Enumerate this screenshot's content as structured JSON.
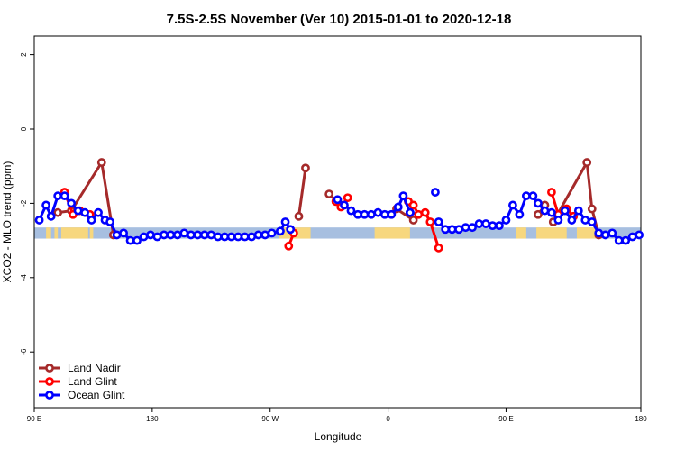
{
  "chart_data": {
    "type": "line",
    "title": "7.5S-2.5S November (Ver 10)   2015-01-01 to 2020-12-18",
    "xlabel": "Longitude",
    "ylabel": "XCO2 - MLO trend (ppm)",
    "xlim": [
      90,
      450
    ],
    "ylim": [
      -7.5,
      2.5
    ],
    "x_ticks": [
      {
        "value": 90,
        "label": "90 E"
      },
      {
        "value": 160,
        "label": "180"
      },
      {
        "value": 230,
        "label": "90 W"
      },
      {
        "value": 300,
        "label": "0"
      },
      {
        "value": 370,
        "label": "90 E"
      },
      {
        "value": 450,
        "label": "180"
      }
    ],
    "y_ticks": [
      {
        "value": 2,
        "label": "2"
      },
      {
        "value": 0,
        "label": "0"
      },
      {
        "value": -2,
        "label": "-2"
      },
      {
        "value": -4,
        "label": "-4"
      },
      {
        "value": -6,
        "label": "-6"
      }
    ],
    "grid": false,
    "legend_position": "bottom-left",
    "series": [
      {
        "name": "Land Nadir",
        "color": "#a52a2a",
        "segments": [
          [
            [
              104,
              -2.25
            ],
            [
              112,
              -2.2
            ],
            [
              130,
              -0.9
            ],
            [
              137,
              -2.85
            ]
          ],
          [
            [
              247,
              -2.35
            ],
            [
              251,
              -1.05
            ]
          ],
          [
            [
              265,
              -1.75
            ],
            [
              272,
              -2.05
            ]
          ],
          [
            [
              305,
              -2.15
            ],
            [
              315,
              -2.45
            ]
          ],
          [
            [
              389,
              -2.3
            ],
            [
              393,
              -2.05
            ]
          ],
          [
            [
              398,
              -2.5
            ],
            [
              418,
              -0.9
            ],
            [
              421,
              -2.15
            ],
            [
              425,
              -2.85
            ]
          ]
        ]
      },
      {
        "name": "Land Glint",
        "color": "#ff0000",
        "segments": [
          [
            [
              108,
              -1.7
            ],
            [
              113,
              -2.3
            ],
            [
              117,
              -2.2
            ],
            [
              123,
              -2.3
            ]
          ],
          [
            [
              241,
              -3.15
            ],
            [
              244,
              -2.8
            ]
          ],
          [
            [
              269,
              -1.95
            ],
            [
              272,
              -2.1
            ],
            [
              276,
              -1.85
            ]
          ],
          [
            [
              312,
              -1.95
            ],
            [
              315,
              -2.05
            ],
            [
              318,
              -2.3
            ],
            [
              322,
              -2.25
            ],
            [
              325,
              -2.5
            ],
            [
              330,
              -3.2
            ]
          ],
          [
            [
              397,
              -1.7
            ],
            [
              401,
              -2.3
            ],
            [
              406,
              -2.15
            ],
            [
              410,
              -2.35
            ]
          ]
        ]
      },
      {
        "name": "Ocean Glint",
        "color": "#0000ff",
        "segments": [
          [
            [
              93,
              -2.45
            ],
            [
              97,
              -2.05
            ],
            [
              100,
              -2.35
            ],
            [
              104,
              -1.8
            ],
            [
              108,
              -1.8
            ],
            [
              112,
              -2.0
            ],
            [
              116,
              -2.2
            ],
            [
              120,
              -2.25
            ],
            [
              124,
              -2.45
            ],
            [
              128,
              -2.25
            ],
            [
              132,
              -2.45
            ],
            [
              135,
              -2.5
            ],
            [
              139,
              -2.85
            ],
            [
              143,
              -2.8
            ],
            [
              147,
              -3.0
            ],
            [
              151,
              -3.0
            ],
            [
              155,
              -2.9
            ],
            [
              159,
              -2.85
            ],
            [
              163,
              -2.9
            ],
            [
              167,
              -2.85
            ],
            [
              171,
              -2.85
            ],
            [
              175,
              -2.85
            ],
            [
              179,
              -2.8
            ],
            [
              183,
              -2.85
            ],
            [
              187,
              -2.85
            ],
            [
              191,
              -2.85
            ],
            [
              195,
              -2.85
            ],
            [
              199,
              -2.9
            ],
            [
              203,
              -2.9
            ],
            [
              207,
              -2.9
            ],
            [
              211,
              -2.9
            ],
            [
              215,
              -2.9
            ],
            [
              219,
              -2.9
            ],
            [
              223,
              -2.85
            ],
            [
              227,
              -2.85
            ],
            [
              231,
              -2.8
            ],
            [
              236,
              -2.75
            ],
            [
              239,
              -2.5
            ],
            [
              242,
              -2.7
            ]
          ],
          [
            [
              270,
              -1.9
            ],
            [
              274,
              -2.05
            ],
            [
              278,
              -2.2
            ],
            [
              282,
              -2.3
            ],
            [
              286,
              -2.3
            ],
            [
              290,
              -2.3
            ],
            [
              294,
              -2.25
            ],
            [
              298,
              -2.3
            ],
            [
              302,
              -2.3
            ],
            [
              306,
              -2.1
            ],
            [
              309,
              -1.8
            ],
            [
              313,
              -2.25
            ]
          ],
          [
            [
              313,
              -2.25
            ]
          ],
          [
            [
              328,
              -1.7
            ]
          ],
          [
            [
              330,
              -2.5
            ],
            [
              334,
              -2.7
            ],
            [
              338,
              -2.7
            ],
            [
              342,
              -2.7
            ],
            [
              346,
              -2.65
            ],
            [
              350,
              -2.65
            ],
            [
              354,
              -2.55
            ],
            [
              358,
              -2.55
            ],
            [
              362,
              -2.6
            ],
            [
              366,
              -2.6
            ],
            [
              370,
              -2.45
            ],
            [
              374,
              -2.05
            ],
            [
              378,
              -2.3
            ],
            [
              382,
              -1.8
            ],
            [
              386,
              -1.8
            ],
            [
              389,
              -2.0
            ],
            [
              393,
              -2.2
            ],
            [
              397,
              -2.25
            ],
            [
              401,
              -2.45
            ],
            [
              405,
              -2.2
            ],
            [
              409,
              -2.45
            ],
            [
              413,
              -2.2
            ],
            [
              417,
              -2.45
            ],
            [
              421,
              -2.5
            ],
            [
              425,
              -2.8
            ],
            [
              429,
              -2.85
            ],
            [
              433,
              -2.8
            ],
            [
              437,
              -3.0
            ],
            [
              441,
              -3.0
            ],
            [
              445,
              -2.9
            ],
            [
              449,
              -2.85
            ]
          ]
        ]
      }
    ],
    "band": {
      "ymin": -2.95,
      "ymax": -2.65,
      "ocean_color": "#a7bfe0",
      "land_color": "#f7d77e",
      "land_ranges": [
        [
          97,
          100
        ],
        [
          102,
          104
        ],
        [
          106,
          122
        ],
        [
          123,
          125
        ],
        [
          235,
          254
        ],
        [
          292,
          313
        ],
        [
          376,
          382
        ],
        [
          388,
          406
        ],
        [
          412,
          423
        ]
      ]
    },
    "colors": {
      "frame": "#000000",
      "background": "#ffffff"
    }
  }
}
